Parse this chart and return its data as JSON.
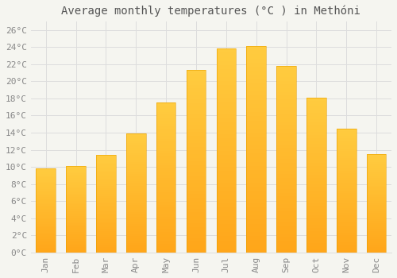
{
  "title": "Average monthly temperatures (°C ) in Methóni",
  "months": [
    "Jan",
    "Feb",
    "Mar",
    "Apr",
    "May",
    "Jun",
    "Jul",
    "Aug",
    "Sep",
    "Oct",
    "Nov",
    "Dec"
  ],
  "values": [
    9.8,
    10.1,
    11.4,
    13.9,
    17.5,
    21.3,
    23.8,
    24.1,
    21.8,
    18.1,
    14.5,
    11.5
  ],
  "bar_color_top": "#FFBB33",
  "bar_color_bottom": "#FFA500",
  "background_color": "#F5F5F0",
  "grid_color": "#DDDDDD",
  "tick_color": "#888888",
  "title_color": "#555555",
  "ylim": [
    0,
    27
  ],
  "yticks": [
    0,
    2,
    4,
    6,
    8,
    10,
    12,
    14,
    16,
    18,
    20,
    22,
    24,
    26
  ],
  "title_fontsize": 10,
  "tick_fontsize": 8
}
